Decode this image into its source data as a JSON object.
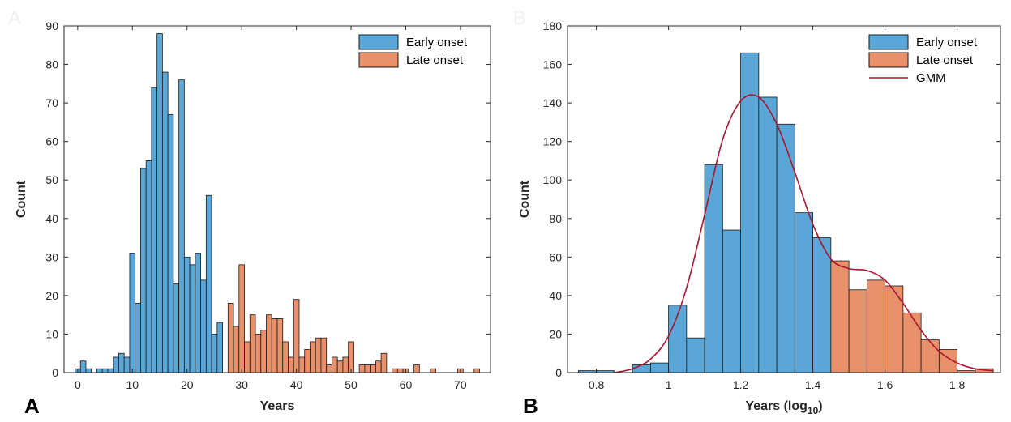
{
  "colors": {
    "early": "#5aa6d6",
    "late": "#e8906a",
    "gmm": "#a8152f",
    "axis": "#262626",
    "edge": "#1a1a1a"
  },
  "chart_data": [
    {
      "type": "bar",
      "panel_letter": "A",
      "title": "",
      "xlabel": "Years",
      "ylabel": "Count",
      "xlim": [
        -2.5,
        75.5
      ],
      "ylim": [
        0,
        90
      ],
      "xticks": [
        0,
        10,
        20,
        30,
        40,
        50,
        60,
        70
      ],
      "yticks": [
        0,
        10,
        20,
        30,
        40,
        50,
        60,
        70,
        80,
        90
      ],
      "bin_width": 1,
      "legend_position": "top-right",
      "series": [
        {
          "name": "Early onset",
          "color": "#5aa6d6",
          "x": [
            0,
            1,
            2,
            3,
            4,
            5,
            6,
            7,
            8,
            9,
            10,
            11,
            12,
            13,
            14,
            15,
            16,
            17,
            18,
            19,
            20,
            21,
            22,
            23,
            24,
            25,
            26,
            27
          ],
          "values": [
            1,
            3,
            1,
            0,
            1,
            1,
            1,
            4,
            5,
            4,
            31,
            18,
            53,
            55,
            74,
            88,
            78,
            67,
            23,
            76,
            30,
            28,
            31,
            24,
            46,
            10,
            13,
            0
          ]
        },
        {
          "name": "Late onset",
          "color": "#e8906a",
          "x": [
            28,
            29,
            30,
            31,
            32,
            33,
            34,
            35,
            36,
            37,
            38,
            39,
            40,
            41,
            42,
            43,
            44,
            45,
            46,
            47,
            48,
            49,
            50,
            51,
            52,
            53,
            54,
            55,
            56,
            57,
            58,
            59,
            60,
            61,
            62,
            63,
            64,
            65,
            66,
            67,
            68,
            69,
            70,
            71,
            72,
            73
          ],
          "values": [
            18,
            12,
            28,
            8,
            15,
            10,
            11,
            15,
            14,
            14,
            8,
            4,
            19,
            4,
            6,
            8,
            9,
            9,
            2,
            4,
            3,
            4,
            8,
            0,
            2,
            2,
            2,
            3,
            5,
            0,
            1,
            1,
            1,
            0,
            2,
            0,
            0,
            1,
            0,
            0,
            0,
            0,
            1,
            0,
            0,
            1
          ]
        }
      ]
    },
    {
      "type": "bar",
      "panel_letter": "B",
      "title": "",
      "xlabel": "Years (log",
      "xlabel_sub": "10",
      "xlabel_close": ")",
      "ylabel": "Count",
      "xlim": [
        0.72,
        1.92
      ],
      "ylim": [
        0,
        180
      ],
      "xticks": [
        0.8,
        1,
        1.2,
        1.4,
        1.6,
        1.8
      ],
      "yticks": [
        0,
        20,
        40,
        60,
        80,
        100,
        120,
        140,
        160,
        180
      ],
      "bin_width": 0.05,
      "legend_position": "top-right",
      "series": [
        {
          "name": "Early onset",
          "color": "#5aa6d6",
          "x": [
            0.775,
            0.825,
            0.875,
            0.925,
            0.975,
            1.025,
            1.075,
            1.125,
            1.175,
            1.225,
            1.275,
            1.325,
            1.375,
            1.425
          ],
          "values": [
            1,
            1,
            0,
            4,
            5,
            35,
            18,
            108,
            74,
            166,
            143,
            129,
            83,
            70
          ]
        },
        {
          "name": "Late onset",
          "color": "#e8906a",
          "x": [
            1.475,
            1.525,
            1.575,
            1.625,
            1.675,
            1.725,
            1.775,
            1.825,
            1.875
          ],
          "values": [
            58,
            43,
            48,
            45,
            31,
            17,
            12,
            1,
            2
          ]
        },
        {
          "name": "GMM",
          "type": "line",
          "color": "#a8152f",
          "x": [
            0.85,
            0.9,
            0.95,
            1.0,
            1.05,
            1.1,
            1.15,
            1.2,
            1.25,
            1.3,
            1.35,
            1.4,
            1.45,
            1.5,
            1.55,
            1.6,
            1.65,
            1.7,
            1.75,
            1.8,
            1.85,
            1.9
          ],
          "values": [
            0,
            2,
            7,
            19,
            44,
            82,
            121,
            141,
            143,
            129,
            104,
            77,
            59,
            54,
            53,
            48,
            36,
            22,
            11,
            5,
            2,
            1
          ]
        }
      ]
    }
  ]
}
